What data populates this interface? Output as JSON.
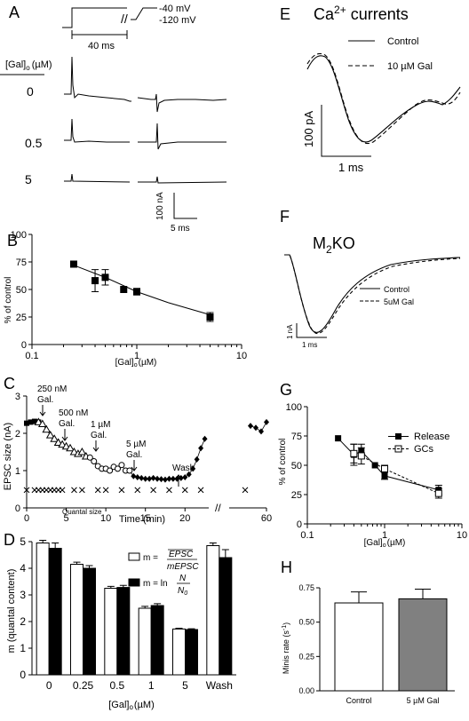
{
  "panels": {
    "A": {
      "letter": "A",
      "protocol_high": "-40 mV",
      "protocol_low": "-120 mV",
      "protocol_duration": "40 ms",
      "conc_header": "[Gal]",
      "conc_header_sub": "o",
      "conc_header_unit": "(µM)",
      "trace_labels": [
        "0",
        "0.5",
        "5"
      ],
      "scalebar_y": "100 nA",
      "scalebar_x": "5 ms"
    },
    "B": {
      "letter": "B",
      "ylabel": "% of control",
      "xlabel_main": "[Gal]",
      "xlabel_sub": "o",
      "xlabel_unit": "(µM)"
    },
    "C": {
      "letter": "C",
      "ylabel": "EPSC size (nA)",
      "xlabel": "Time (min)",
      "annotations": [
        "250 nM",
        "Gal.",
        "500 nM",
        "Gal.",
        "1 µM",
        "Gal.",
        "5 µM",
        "Gal.",
        "Wash"
      ],
      "quantal_label": "Quantal size"
    },
    "D": {
      "letter": "D",
      "ylabel": "m (quantal content)",
      "xlabel_main": "[Gal]",
      "xlabel_sub": "o",
      "xlabel_unit": "(µM)",
      "legend_open_lhs": "m = ",
      "legend_open_num": "EPSC",
      "legend_open_den": "mEPSC",
      "legend_filled_lhs": "m = ln",
      "legend_filled_num": "N",
      "legend_filled_den": "N",
      "legend_filled_den_sub": "0"
    },
    "E": {
      "letter": "E",
      "title_main": "Ca",
      "title_sup": "2+",
      "title_rest": " currents",
      "legend": [
        "Control",
        "10 µM Gal"
      ],
      "scalebar_y": "100 pA",
      "scalebar_x": "1 ms"
    },
    "F": {
      "letter": "F",
      "title_main": "M",
      "title_sub": "2",
      "title_rest": "KO",
      "legend": [
        "Control",
        "5uM Gal"
      ],
      "scalebar_y": "1 nA",
      "scalebar_x": "1 ms"
    },
    "G": {
      "letter": "G",
      "ylabel": "% of control",
      "xlabel_main": "[Gal]",
      "xlabel_sub": "o",
      "xlabel_unit": "(µM)",
      "legend": [
        "Release",
        "GCs"
      ]
    },
    "H": {
      "letter": "H",
      "ylabel": "Minis rate (s",
      "ylabel_sup": "-1",
      "ylabel_close": ")",
      "categories": [
        "Control",
        "5 µM Gal"
      ]
    }
  },
  "chart_data": [
    {
      "panel": "B",
      "type": "scatter",
      "x_scale": "log",
      "xlim": [
        0.1,
        10
      ],
      "ylim": [
        0,
        100
      ],
      "xticks": [
        "0.1",
        "1",
        "10"
      ],
      "yticks": [
        "0",
        "25",
        "50",
        "75",
        "100"
      ],
      "series": [
        {
          "x": [
            0.25,
            0.4,
            0.5,
            0.75,
            1,
            5
          ],
          "y": [
            73,
            58,
            61,
            50,
            48,
            25
          ],
          "err": [
            0,
            10,
            7,
            0,
            3,
            4
          ]
        }
      ],
      "fit_curve": {
        "x": [
          0.25,
          0.5,
          1,
          2,
          5
        ],
        "y": [
          72,
          61,
          48,
          38,
          27
        ]
      }
    },
    {
      "panel": "C",
      "type": "scatter",
      "xlim": [
        0,
        60
      ],
      "ylim": [
        0,
        3
      ],
      "xticks": [
        "0",
        "5",
        "10",
        "15",
        "20",
        "60"
      ],
      "yticks": [
        "0",
        "1",
        "2",
        "3"
      ],
      "x_axis_break": [
        23,
        55
      ],
      "series": [
        {
          "marker": "square",
          "x": [
            0,
            0.5,
            1,
            1.5
          ],
          "y": [
            2.27,
            2.3,
            2.32,
            2.3
          ]
        },
        {
          "marker": "triangle",
          "x": [
            1.5,
            2,
            2.5,
            3,
            3.5,
            4
          ],
          "y": [
            2.3,
            2.25,
            2.1,
            1.95,
            1.85,
            1.75
          ]
        },
        {
          "marker": "triangle",
          "x": [
            4,
            4.5,
            5,
            5.5,
            6,
            6.5,
            7,
            7.5
          ],
          "y": [
            1.75,
            1.7,
            1.65,
            1.6,
            1.5,
            1.45,
            1.5,
            1.38
          ]
        },
        {
          "marker": "circle",
          "x": [
            8,
            8.5,
            9,
            9.5,
            10,
            10.5,
            11,
            11.5,
            12,
            12.5,
            13
          ],
          "y": [
            1.35,
            1.25,
            1.12,
            1.05,
            1.05,
            1.0,
            1.1,
            1.05,
            1.15,
            1.0,
            1.0
          ]
        },
        {
          "marker": "diamond",
          "x": [
            13.5,
            14,
            14.5,
            15,
            15.5,
            16,
            16.5,
            17,
            17.5,
            18,
            18.5,
            19,
            19.5,
            20,
            20.5,
            21,
            21.5,
            22,
            22.5,
            57,
            58,
            59,
            60
          ],
          "y": [
            0.85,
            0.82,
            0.8,
            0.78,
            0.78,
            0.8,
            0.78,
            0.77,
            0.76,
            0.78,
            0.78,
            0.78,
            0.8,
            0.82,
            0.9,
            1.05,
            1.3,
            1.6,
            1.85,
            2.2,
            2.15,
            2.05,
            2.3
          ]
        }
      ],
      "quantal_size": {
        "marker": "x",
        "x": [
          0,
          1,
          1.5,
          2,
          2.5,
          3,
          3.5,
          4,
          4.5,
          6,
          7,
          9,
          10,
          12,
          14,
          16,
          18,
          20,
          22,
          56
        ],
        "y": 0.48
      }
    },
    {
      "panel": "D",
      "type": "bar",
      "categories": [
        "0",
        "0.25",
        "0.5",
        "1",
        "5",
        "Wash"
      ],
      "ylim": [
        0,
        5
      ],
      "yticks": [
        "0",
        "1",
        "2",
        "3",
        "4",
        "5"
      ],
      "series": [
        {
          "name": "m = EPSC/mEPSC",
          "fill": "open",
          "values": [
            4.95,
            4.15,
            3.25,
            2.5,
            1.72,
            4.85
          ],
          "err": [
            0.1,
            0.08,
            0.07,
            0.07,
            0.03,
            0.1
          ]
        },
        {
          "name": "m = ln N/N0",
          "fill": "filled",
          "values": [
            4.75,
            4.0,
            3.28,
            2.6,
            1.7,
            4.4
          ],
          "err": [
            0.2,
            0.1,
            0.08,
            0.07,
            0.03,
            0.3
          ]
        }
      ]
    },
    {
      "panel": "G",
      "type": "scatter",
      "x_scale": "log",
      "xlim": [
        0.1,
        10
      ],
      "ylim": [
        0,
        100
      ],
      "xticks": [
        "0.1",
        "1",
        "10"
      ],
      "yticks": [
        "0",
        "25",
        "50",
        "75",
        "100"
      ],
      "series": [
        {
          "name": "Release",
          "marker": "filled-square",
          "x": [
            0.25,
            0.4,
            0.5,
            0.75,
            1,
            5
          ],
          "y": [
            73,
            59,
            62,
            50,
            41,
            29
          ],
          "err": [
            0,
            9,
            6,
            0,
            3,
            4
          ]
        },
        {
          "name": "GCs",
          "marker": "open-square",
          "x": [
            0.4,
            0.5,
            1,
            5
          ],
          "y": [
            60,
            58,
            47,
            26
          ],
          "err": [
            8,
            7,
            3,
            4
          ]
        }
      ]
    },
    {
      "panel": "H",
      "type": "bar",
      "categories": [
        "Control",
        "5 µM Gal"
      ],
      "ylim": [
        0,
        0.75
      ],
      "yticks": [
        "0.00",
        "0.25",
        "0.50",
        "0.75"
      ],
      "values": [
        0.64,
        0.67
      ],
      "err": [
        0.08,
        0.07
      ],
      "fills": [
        "#ffffff",
        "#808080"
      ]
    }
  ],
  "colors": {
    "ink": "#000000",
    "bar_grey": "#808080",
    "bar_black": "#000000",
    "bar_open": "#ffffff"
  }
}
